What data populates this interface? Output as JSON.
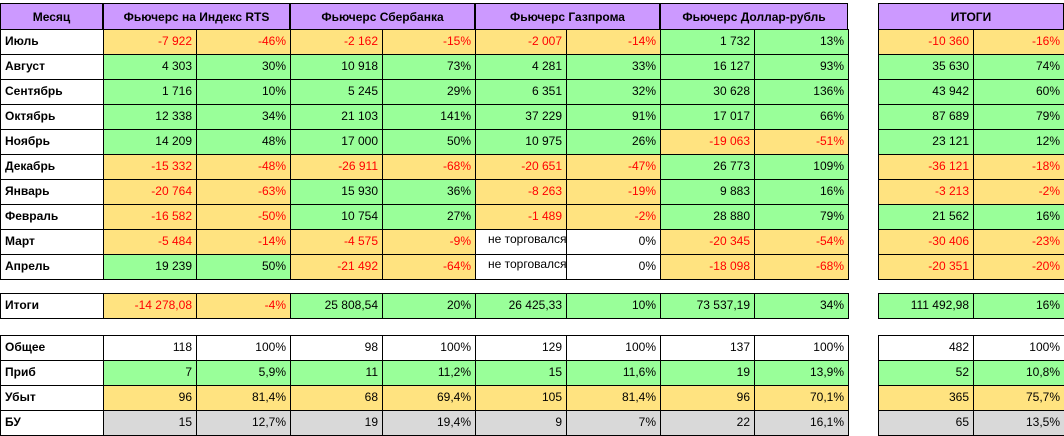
{
  "header": {
    "month": "Месяц",
    "rts": "Фьючерс на Индекс RTS",
    "sber": "Фьючерс Сбербанка",
    "gazp": "Фьючерс Газпрома",
    "usd": "Фьючерс Доллар-рубль",
    "total": "ИТОГИ"
  },
  "months": [
    {
      "name": "Июль",
      "cells": [
        {
          "v": "-7 922",
          "bg": "y",
          "neg": true
        },
        {
          "v": "-46%",
          "bg": "y",
          "neg": true
        },
        {
          "v": "-2 162",
          "bg": "y",
          "neg": true
        },
        {
          "v": "-15%",
          "bg": "y",
          "neg": true
        },
        {
          "v": "-2 007",
          "bg": "y",
          "neg": true
        },
        {
          "v": "-14%",
          "bg": "y",
          "neg": true
        },
        {
          "v": "1 732",
          "bg": "g"
        },
        {
          "v": "13%",
          "bg": "g"
        },
        {
          "v": "-10 360",
          "bg": "y",
          "neg": true
        },
        {
          "v": "-16%",
          "bg": "y",
          "neg": true
        }
      ]
    },
    {
      "name": "Август",
      "cells": [
        {
          "v": "4 303",
          "bg": "g"
        },
        {
          "v": "30%",
          "bg": "g"
        },
        {
          "v": "10 918",
          "bg": "g"
        },
        {
          "v": "73%",
          "bg": "g"
        },
        {
          "v": "4 281",
          "bg": "g"
        },
        {
          "v": "33%",
          "bg": "g"
        },
        {
          "v": "16 127",
          "bg": "g"
        },
        {
          "v": "93%",
          "bg": "g"
        },
        {
          "v": "35 630",
          "bg": "g"
        },
        {
          "v": "74%",
          "bg": "g"
        }
      ]
    },
    {
      "name": "Сентябрь",
      "cells": [
        {
          "v": "1 716",
          "bg": "g"
        },
        {
          "v": "10%",
          "bg": "g"
        },
        {
          "v": "5 245",
          "bg": "g"
        },
        {
          "v": "29%",
          "bg": "g"
        },
        {
          "v": "6 351",
          "bg": "g"
        },
        {
          "v": "32%",
          "bg": "g"
        },
        {
          "v": "30 628",
          "bg": "g"
        },
        {
          "v": "136%",
          "bg": "g"
        },
        {
          "v": "43 942",
          "bg": "g"
        },
        {
          "v": "60%",
          "bg": "g"
        }
      ]
    },
    {
      "name": "Октябрь",
      "cells": [
        {
          "v": "12 338",
          "bg": "g"
        },
        {
          "v": "34%",
          "bg": "g"
        },
        {
          "v": "21 103",
          "bg": "g"
        },
        {
          "v": "141%",
          "bg": "g"
        },
        {
          "v": "37 229",
          "bg": "g"
        },
        {
          "v": "91%",
          "bg": "g"
        },
        {
          "v": "17 017",
          "bg": "g"
        },
        {
          "v": "66%",
          "bg": "g"
        },
        {
          "v": "87 689",
          "bg": "g"
        },
        {
          "v": "79%",
          "bg": "g"
        }
      ]
    },
    {
      "name": "Ноябрь",
      "cells": [
        {
          "v": "14 209",
          "bg": "g"
        },
        {
          "v": "48%",
          "bg": "g"
        },
        {
          "v": "17 000",
          "bg": "g"
        },
        {
          "v": "50%",
          "bg": "g"
        },
        {
          "v": "10 975",
          "bg": "g"
        },
        {
          "v": "26%",
          "bg": "g"
        },
        {
          "v": "-19 063",
          "bg": "y",
          "neg": true
        },
        {
          "v": "-51%",
          "bg": "y",
          "neg": true
        },
        {
          "v": "23 121",
          "bg": "g"
        },
        {
          "v": "12%",
          "bg": "g"
        }
      ]
    },
    {
      "name": "Декабрь",
      "cells": [
        {
          "v": "-15 332",
          "bg": "y",
          "neg": true
        },
        {
          "v": "-48%",
          "bg": "y",
          "neg": true
        },
        {
          "v": "-26 911",
          "bg": "y",
          "neg": true
        },
        {
          "v": "-68%",
          "bg": "y",
          "neg": true
        },
        {
          "v": "-20 651",
          "bg": "y",
          "neg": true
        },
        {
          "v": "-47%",
          "bg": "y",
          "neg": true
        },
        {
          "v": "26 773",
          "bg": "g"
        },
        {
          "v": "109%",
          "bg": "g"
        },
        {
          "v": "-36 121",
          "bg": "y",
          "neg": true
        },
        {
          "v": "-18%",
          "bg": "y",
          "neg": true
        }
      ]
    },
    {
      "name": "Январь",
      "cells": [
        {
          "v": "-20 764",
          "bg": "y",
          "neg": true
        },
        {
          "v": "-63%",
          "bg": "y",
          "neg": true
        },
        {
          "v": "15 930",
          "bg": "g"
        },
        {
          "v": "36%",
          "bg": "g"
        },
        {
          "v": "-8 263",
          "bg": "y",
          "neg": true
        },
        {
          "v": "-19%",
          "bg": "y",
          "neg": true
        },
        {
          "v": "9 883",
          "bg": "g"
        },
        {
          "v": "16%",
          "bg": "g"
        },
        {
          "v": "-3 213",
          "bg": "y",
          "neg": true
        },
        {
          "v": "-2%",
          "bg": "y",
          "neg": true
        }
      ]
    },
    {
      "name": "Февраль",
      "cells": [
        {
          "v": "-16 582",
          "bg": "y",
          "neg": true
        },
        {
          "v": "-50%",
          "bg": "y",
          "neg": true
        },
        {
          "v": "10 754",
          "bg": "g"
        },
        {
          "v": "27%",
          "bg": "g"
        },
        {
          "v": "-1 489",
          "bg": "y",
          "neg": true
        },
        {
          "v": "-2%",
          "bg": "y",
          "neg": true
        },
        {
          "v": "28 880",
          "bg": "g"
        },
        {
          "v": "79%",
          "bg": "g"
        },
        {
          "v": "21 562",
          "bg": "g"
        },
        {
          "v": "16%",
          "bg": "g"
        }
      ]
    },
    {
      "name": "Март",
      "cells": [
        {
          "v": "-5 484",
          "bg": "y",
          "neg": true
        },
        {
          "v": "-14%",
          "bg": "y",
          "neg": true
        },
        {
          "v": "-4 575",
          "bg": "y",
          "neg": true
        },
        {
          "v": "-9%",
          "bg": "y",
          "neg": true
        },
        {
          "v": "не торговался",
          "bg": "w",
          "note": true
        },
        {
          "v": "0%",
          "bg": "w"
        },
        {
          "v": "-20 345",
          "bg": "y",
          "neg": true
        },
        {
          "v": "-54%",
          "bg": "y",
          "neg": true
        },
        {
          "v": "-30 406",
          "bg": "y",
          "neg": true
        },
        {
          "v": "-23%",
          "bg": "y",
          "neg": true
        }
      ]
    },
    {
      "name": "Апрель",
      "cells": [
        {
          "v": "19 239",
          "bg": "g"
        },
        {
          "v": "50%",
          "bg": "g"
        },
        {
          "v": "-21 492",
          "bg": "y",
          "neg": true
        },
        {
          "v": "-64%",
          "bg": "y",
          "neg": true
        },
        {
          "v": "не торговался",
          "bg": "w",
          "note": true
        },
        {
          "v": "0%",
          "bg": "w"
        },
        {
          "v": "-18 098",
          "bg": "y",
          "neg": true
        },
        {
          "v": "-68%",
          "bg": "y",
          "neg": true
        },
        {
          "v": "-20 351",
          "bg": "y",
          "neg": true
        },
        {
          "v": "-20%",
          "bg": "y",
          "neg": true
        }
      ]
    }
  ],
  "totals": {
    "name": "Итоги",
    "cells": [
      {
        "v": "-14 278,08",
        "bg": "y",
        "neg": true
      },
      {
        "v": "-4%",
        "bg": "y",
        "neg": true
      },
      {
        "v": "25 808,54",
        "bg": "g"
      },
      {
        "v": "20%",
        "bg": "g"
      },
      {
        "v": "26 425,33",
        "bg": "g"
      },
      {
        "v": "10%",
        "bg": "g"
      },
      {
        "v": "73 537,19",
        "bg": "g"
      },
      {
        "v": "34%",
        "bg": "g"
      },
      {
        "v": "111 492,98",
        "bg": "g"
      },
      {
        "v": "16%",
        "bg": "g"
      }
    ]
  },
  "stats": [
    {
      "name": "Общее",
      "bg": "w",
      "cells": [
        "118",
        "100%",
        "98",
        "100%",
        "129",
        "100%",
        "137",
        "100%",
        "482",
        "100%"
      ]
    },
    {
      "name": "Приб",
      "bg": "g",
      "cells": [
        "7",
        "5,9%",
        "11",
        "11,2%",
        "15",
        "11,6%",
        "19",
        "13,9%",
        "52",
        "10,8%"
      ]
    },
    {
      "name": "Убыт",
      "bg": "y",
      "cells": [
        "96",
        "81,4%",
        "68",
        "69,4%",
        "105",
        "81,4%",
        "96",
        "70,1%",
        "365",
        "75,7%"
      ]
    },
    {
      "name": "БУ",
      "bg": "gr",
      "cells": [
        "15",
        "12,7%",
        "19",
        "19,4%",
        "9",
        "7%",
        "22",
        "16,1%",
        "65",
        "13,5%"
      ]
    }
  ]
}
